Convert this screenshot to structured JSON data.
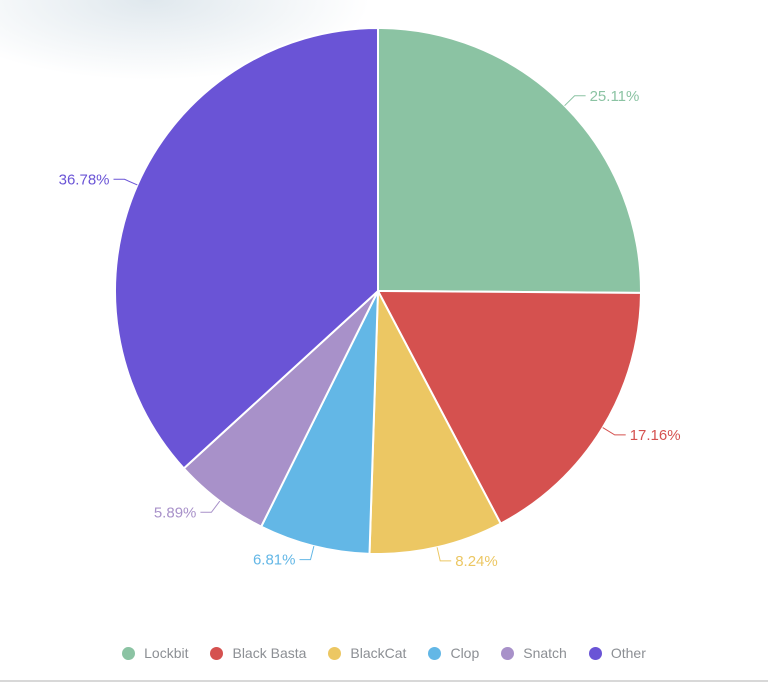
{
  "chart_data": {
    "type": "pie",
    "categories": [
      "Lockbit",
      "Black Basta",
      "BlackCat",
      "Clop",
      "Snatch",
      "Other"
    ],
    "values": [
      25.11,
      17.16,
      8.24,
      6.81,
      5.89,
      36.78
    ],
    "labels": [
      "25.11%",
      "17.16%",
      "8.24%",
      "6.81%",
      "5.89%",
      "36.78%"
    ],
    "colors": [
      "#8bc3a3",
      "#d5514f",
      "#ecc763",
      "#63b7e6",
      "#a891c9",
      "#6a54d6"
    ],
    "unit": "%",
    "start_angle": "top",
    "direction": "clockwise",
    "legend_position": "bottom",
    "legend": [
      "Lockbit",
      "Black Basta",
      "BlackCat",
      "Clop",
      "Snatch",
      "Other"
    ]
  },
  "ui": {
    "legend_text_color": "#8c8f94",
    "divider_color": "#d8d8d8",
    "background_color": "#ffffff",
    "slice_border_color": "#ffffff"
  }
}
